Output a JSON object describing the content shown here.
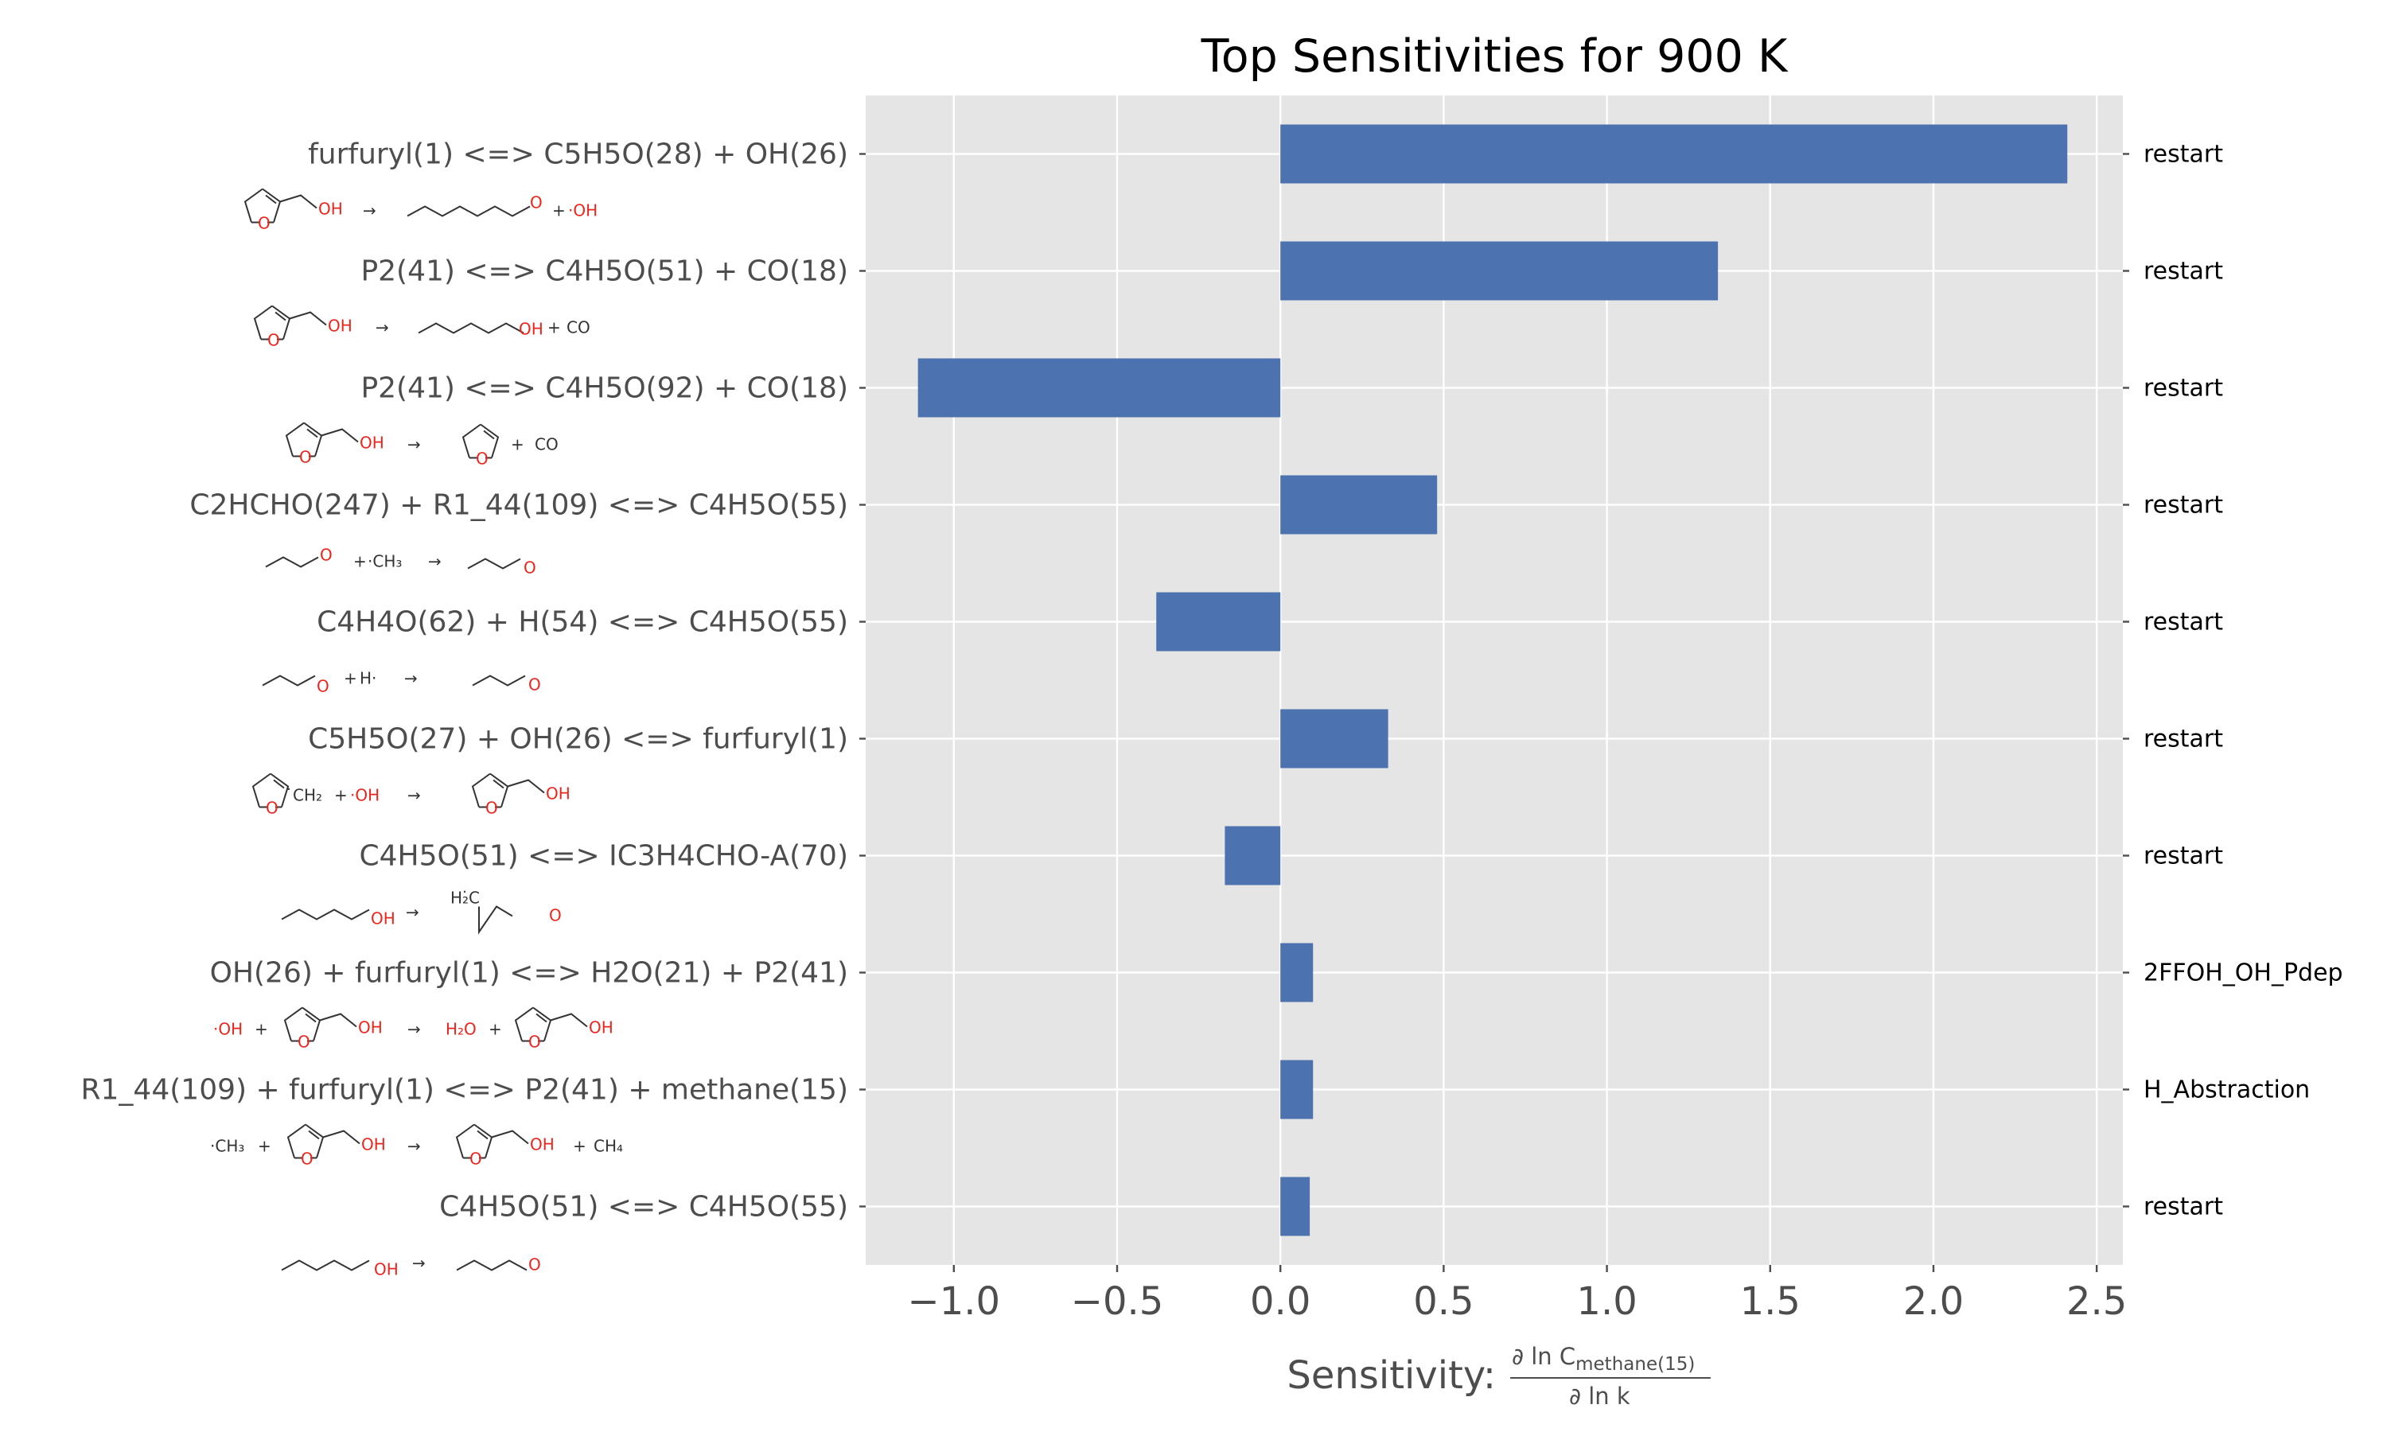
{
  "chart_data": {
    "type": "bar",
    "orientation": "horizontal",
    "title": "Top Sensitivities for 900 K",
    "xlabel_prefix": "Sensitivity:",
    "xlabel_numerator": "∂ ln C",
    "xlabel_numerator_sub": "methane(15)",
    "xlabel_denominator": "∂ ln k",
    "xlim": [
      -1.27,
      2.58
    ],
    "xticks": [
      -1.0,
      -0.5,
      0.0,
      0.5,
      1.0,
      1.5,
      2.0,
      2.5
    ],
    "xtick_labels": [
      "−1.0",
      "−0.5",
      "0.0",
      "0.5",
      "1.0",
      "1.5",
      "2.0",
      "2.5"
    ],
    "grid": true,
    "bar_color": "#4c72b0",
    "background_color": "#e5e5e5",
    "reactions": [
      {
        "label": "furfuryl(1) <=> C5H5O(28) + OH(26)",
        "value": 2.41,
        "family": "restart"
      },
      {
        "label": "P2(41) <=> C4H5O(51) + CO(18)",
        "value": 1.34,
        "family": "restart"
      },
      {
        "label": "P2(41) <=> C4H5O(92) + CO(18)",
        "value": -1.11,
        "family": "restart"
      },
      {
        "label": "C2HCHO(247) + R1_44(109) <=> C4H5O(55)",
        "value": 0.48,
        "family": "restart"
      },
      {
        "label": "C4H4O(62) + H(54) <=> C4H5O(55)",
        "value": -0.38,
        "family": "restart"
      },
      {
        "label": "C5H5O(27) + OH(26) <=> furfuryl(1)",
        "value": 0.33,
        "family": "restart"
      },
      {
        "label": "C4H5O(51) <=> IC3H4CHO-A(70)",
        "value": -0.17,
        "family": "restart"
      },
      {
        "label": "OH(26) + furfuryl(1) <=> H2O(21) + P2(41)",
        "value": 0.1,
        "family": "2FFOH_OH_Pdep"
      },
      {
        "label": "R1_44(109) + furfuryl(1) <=> P2(41) + methane(15)",
        "value": 0.1,
        "family": "H_Abstraction"
      },
      {
        "label": "C4H5O(51) <=> C4H5O(55)",
        "value": 0.09,
        "family": "restart"
      }
    ],
    "structure_glyphs": {
      "arrow": "→",
      "plus": "+",
      "oh": "OH",
      "oh_radical": "·OH",
      "o": "O",
      "co": "CO",
      "h_radical": "H·",
      "ch3_radical": "·CH₃",
      "ch2_radical": "̇CH₂",
      "h2c_radical": "H₂̇C",
      "h2o": "H₂O",
      "ch4": "CH₄"
    }
  }
}
